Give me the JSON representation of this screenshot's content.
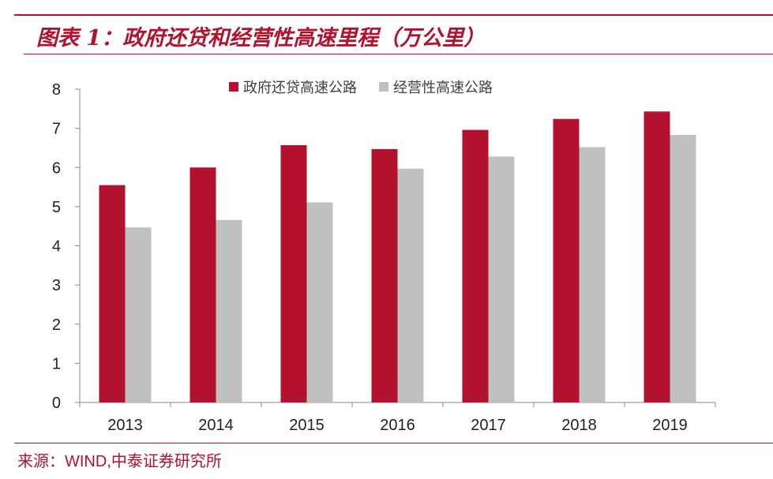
{
  "header": {
    "title": "图表 1：政府还贷和经营性高速里程（万公里）"
  },
  "footer": {
    "source": "来源：WIND,中泰证券研究所"
  },
  "colors": {
    "accent": "#b3122e",
    "series_1": "#b3122e",
    "series_2": "#c0c0c0"
  },
  "chart_data": {
    "type": "bar",
    "title": "",
    "xlabel": "",
    "ylabel": "",
    "categories": [
      "2013",
      "2014",
      "2015",
      "2016",
      "2017",
      "2018",
      "2019"
    ],
    "series": [
      {
        "name": "政府还贷高速公路",
        "values": [
          5.55,
          6.0,
          6.57,
          6.47,
          6.96,
          7.24,
          7.43
        ]
      },
      {
        "name": "经营性高速公路",
        "values": [
          4.47,
          4.66,
          5.11,
          5.97,
          6.28,
          6.52,
          6.83
        ]
      }
    ],
    "ylim": [
      0,
      8
    ],
    "yticks": [
      0,
      1,
      2,
      3,
      4,
      5,
      6,
      7,
      8
    ],
    "grid": false,
    "legend_position": "top"
  }
}
